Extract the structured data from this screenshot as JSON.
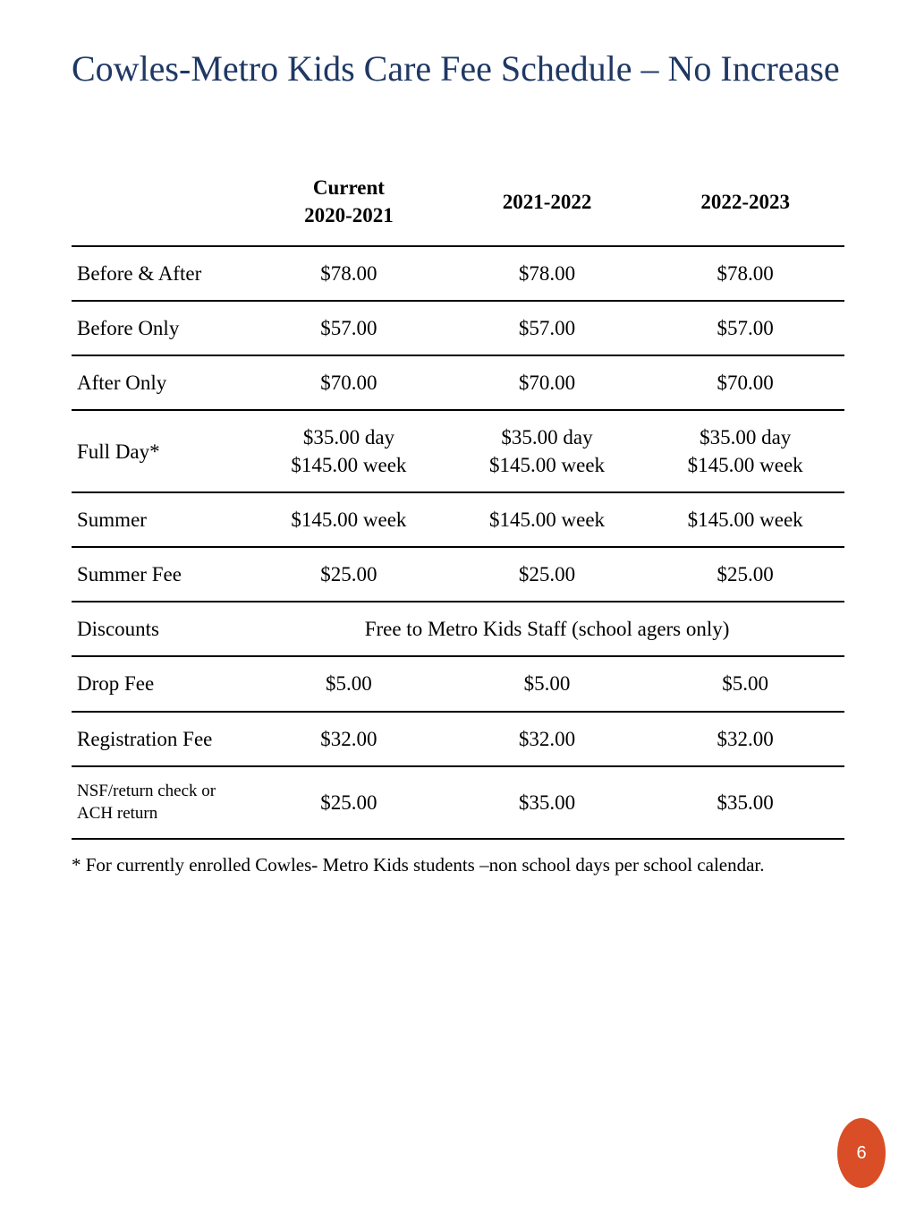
{
  "title_text": "Cowles-Metro Kids Care Fee Schedule – No Increase",
  "title_color": "#1f3864",
  "text_color": "#000000",
  "border_color": "#000000",
  "background_color": "#ffffff",
  "badge": {
    "number": "6",
    "fill": "#d94e26",
    "text_color": "#ffffff"
  },
  "table": {
    "columns": [
      {
        "label": "",
        "width_pct": 23,
        "align": "left"
      },
      {
        "label": "Current\n2020-2021",
        "width_pct": 25.6,
        "align": "center"
      },
      {
        "label": "2021-2022",
        "width_pct": 25.6,
        "align": "center"
      },
      {
        "label": "2022-2023",
        "width_pct": 25.6,
        "align": "center"
      }
    ],
    "header_fontsize": 23,
    "header_fontweight": "bold",
    "body_fontsize": 23,
    "rows": [
      {
        "label": "Before & After",
        "c1": "$78.00",
        "c2": "$78.00",
        "c3": "$78.00"
      },
      {
        "label": "Before Only",
        "c1": "$57.00",
        "c2": "$57.00",
        "c3": "$57.00"
      },
      {
        "label": "After Only",
        "c1": "$70.00",
        "c2": "$70.00",
        "c3": "$70.00"
      },
      {
        "label": "Full Day*",
        "c1": "$35.00 day\n$145.00 week",
        "c2": "$35.00 day\n$145.00 week",
        "c3": "$35.00 day\n$145.00 week"
      },
      {
        "label": "Summer",
        "c1": "$145.00 week",
        "c2": "$145.00 week",
        "c3": "$145.00 week"
      },
      {
        "label": "Summer Fee",
        "c1": "$25.00",
        "c2": "$25.00",
        "c3": "$25.00"
      },
      {
        "label": "Discounts",
        "span_text": "Free to  Metro Kids Staff (school agers only)",
        "span": 3
      },
      {
        "label": "Drop Fee",
        "c1": "$5.00",
        "c2": "$5.00",
        "c3": "$5.00"
      },
      {
        "label": "Registration Fee",
        "c1": "$32.00",
        "c2": "$32.00",
        "c3": "$32.00"
      },
      {
        "label": "NSF/return check or ACH return",
        "label_small": true,
        "c1": "$25.00",
        "c2": "$35.00",
        "c3": "$35.00"
      }
    ]
  },
  "footnote": "* For  currently enrolled Cowles- Metro Kids students –non school days per school calendar."
}
